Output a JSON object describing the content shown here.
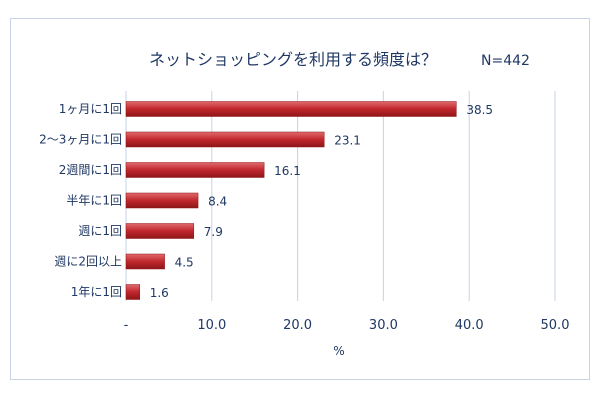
{
  "chart_data": {
    "type": "bar",
    "orientation": "horizontal",
    "title": "ネットショッピングを利用する頻度は？",
    "note": "N=442",
    "categories": [
      "1ヶ月に1回",
      "2～3ヶ月に1回",
      "2週間に1回",
      "半年に1回",
      "週に1回",
      "週に2回以上",
      "1年に1回"
    ],
    "values": [
      38.5,
      23.1,
      16.1,
      8.4,
      7.9,
      4.5,
      1.6
    ],
    "value_labels": [
      "38.5",
      "23.1",
      "16.1",
      "8.4",
      "7.9",
      "4.5",
      "1.6"
    ],
    "xlim": [
      0,
      50
    ],
    "x_ticks": [
      0,
      10,
      20,
      30,
      40,
      50
    ],
    "x_tick_labels": [
      "-",
      "10.0",
      "20.0",
      "30.0",
      "40.0",
      "50.0"
    ],
    "xlabel": "%",
    "ylabel": "",
    "grid": "vertical",
    "bar_color": "#c0272d",
    "text_color": "#1f3864",
    "grid_color": "#c5d3e8"
  }
}
